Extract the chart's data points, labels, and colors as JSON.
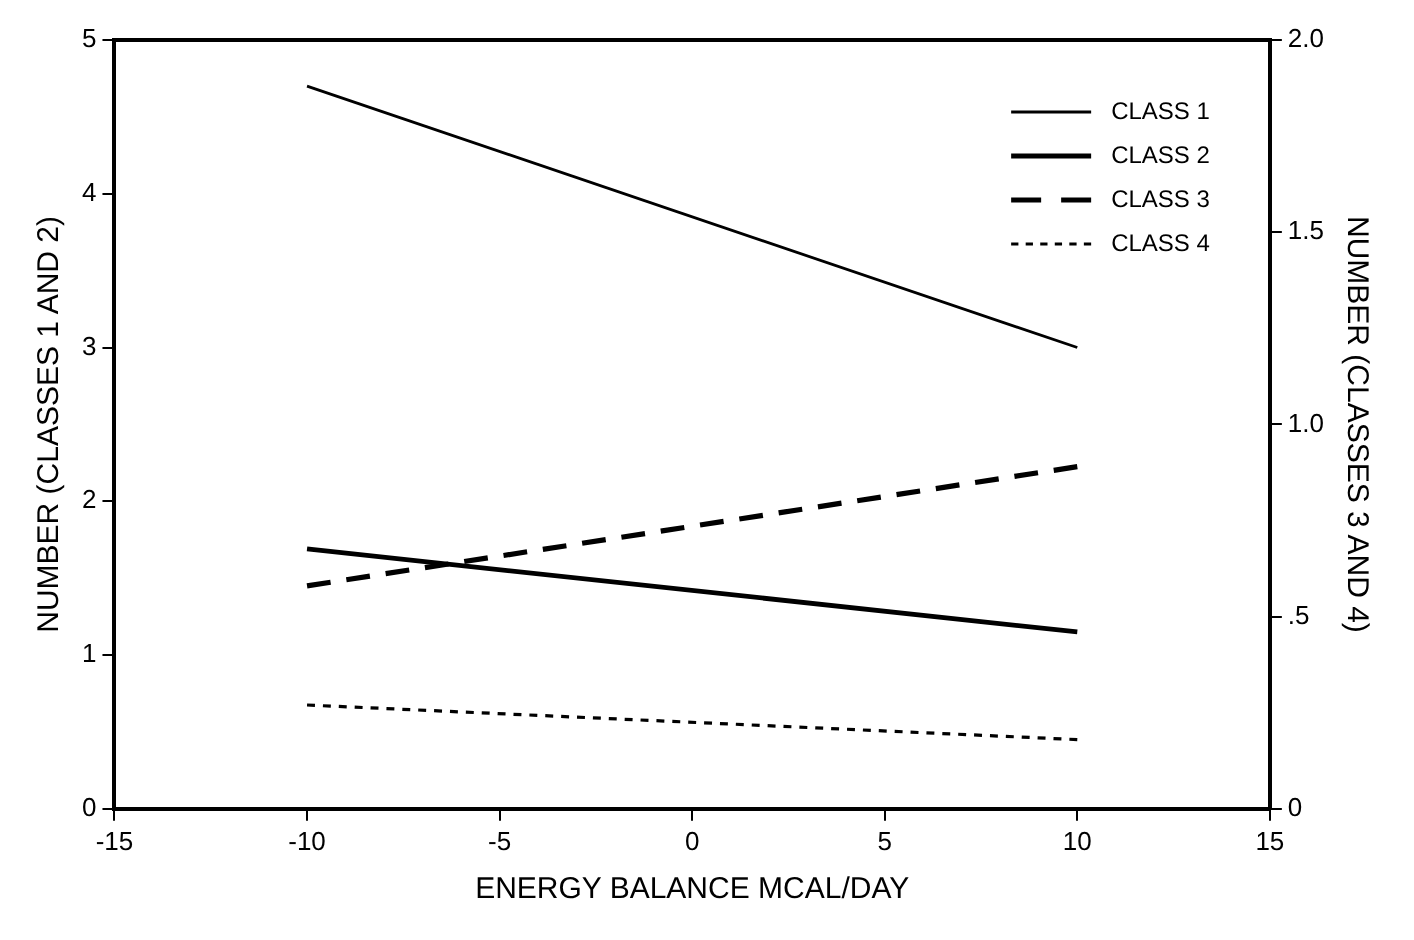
{
  "chart_data": {
    "type": "line",
    "xlabel": "ENERGY BALANCE MCAL/DAY",
    "ylabel": "NUMBER (CLASSES 1 AND 2)",
    "y2label": "NUMBER (CLASSES 3 AND 4)",
    "x": [
      -10,
      10
    ],
    "series": [
      {
        "name": "CLASS 1",
        "color": "#000000",
        "values": [
          4.7,
          3.0
        ],
        "line_style": "solid"
      },
      {
        "name": "CLASS 2",
        "color": "#000000",
        "values": [
          1.69,
          1.15
        ],
        "line_style": "solid"
      },
      {
        "name": "CLASS 3",
        "color": "#000000",
        "values": [
          0.58,
          0.89
        ],
        "line_style": "dashed",
        "axis": "y2"
      },
      {
        "name": "CLASS 4",
        "color": "#000000",
        "values": [
          0.27,
          0.18
        ],
        "line_style": "dotted",
        "axis": "y2"
      }
    ],
    "xlim": [
      -15,
      15
    ],
    "xticks": [
      -15,
      -10,
      -5,
      0,
      5,
      10,
      15
    ],
    "ylim": [
      0,
      5
    ],
    "yticks": [
      0,
      1,
      2,
      3,
      4,
      5
    ],
    "y2lim": [
      0,
      2
    ],
    "y2ticks": [
      0,
      {
        "value": 0.5,
        "label": ".5"
      },
      {
        "value": 1,
        "label": "1.0"
      },
      {
        "value": 1.5,
        "label": "1.5"
      },
      {
        "value": 2,
        "label": "2.0"
      }
    ],
    "grid": false,
    "legend": "top right",
    "marker": "none"
  }
}
